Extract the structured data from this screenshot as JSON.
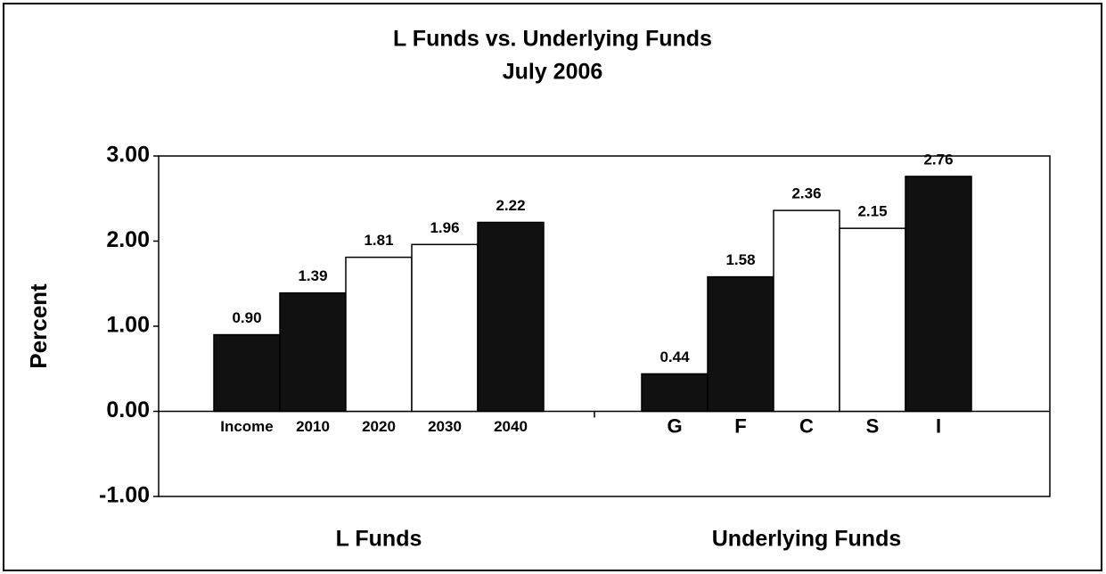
{
  "chart_data": {
    "type": "bar",
    "title": [
      "L Funds vs. Underlying Funds",
      "July 2006"
    ],
    "ylabel": "Percent",
    "ylim": [
      -1,
      3
    ],
    "yticks": [
      {
        "value": -1,
        "label": "-1.00"
      },
      {
        "value": 0,
        "label": "0.00"
      },
      {
        "value": 1,
        "label": "1.00"
      },
      {
        "value": 2,
        "label": "2.00"
      },
      {
        "value": 3,
        "label": "3.00"
      }
    ],
    "grid": false,
    "groups": [
      {
        "name": "L Funds",
        "categories": [
          "Income",
          "2010",
          "2020",
          "2030",
          "2040"
        ],
        "values": [
          0.9,
          1.39,
          1.81,
          1.96,
          2.22
        ],
        "value_labels": [
          "0.90",
          "1.39",
          "1.81",
          "1.96",
          "2.22"
        ],
        "colors": [
          "#111111",
          "#111111",
          "#ffffff",
          "#ffffff",
          "#111111"
        ]
      },
      {
        "name": "Underlying Funds",
        "categories": [
          "G",
          "F",
          "C",
          "S",
          "I"
        ],
        "values": [
          0.44,
          1.58,
          2.36,
          2.15,
          2.76
        ],
        "value_labels": [
          "0.44",
          "1.58",
          "2.36",
          "2.15",
          "2.76"
        ],
        "colors": [
          "#111111",
          "#111111",
          "#ffffff",
          "#ffffff",
          "#111111"
        ]
      }
    ]
  }
}
